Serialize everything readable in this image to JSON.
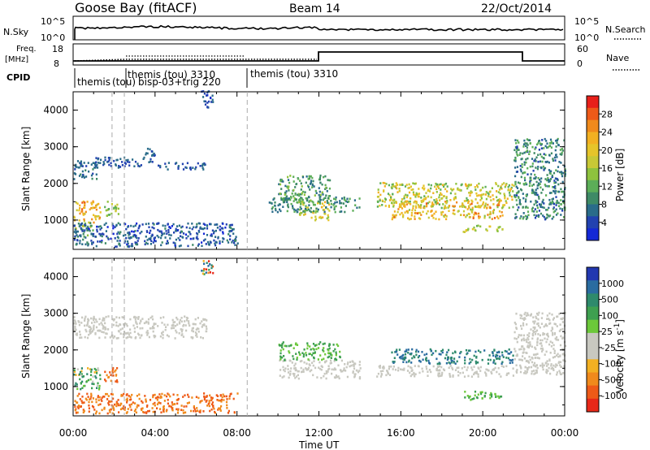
{
  "header": {
    "station": "Goose Bay (fitACF)",
    "beam": "Beam 14",
    "date": "22/Oct/2014"
  },
  "top_panels": {
    "nsky_label": "N.Sky",
    "nsky_ticks": [
      "10^5",
      "10^0"
    ],
    "nsearch_label": "N.Search",
    "nsearch_ticks": [
      "10^5",
      "10^0"
    ],
    "freq_label": "Freq.",
    "freq_unit": "[MHz]",
    "freq_ticks": [
      "18",
      "8"
    ],
    "nave_label": "Nave",
    "nave_ticks": [
      "60",
      "0"
    ],
    "cpid_label": "CPID",
    "cpid_entries": [
      {
        "label": "themis",
        "t_start": 0.0
      },
      {
        "label": "(tou)",
        "t_start": 1.3
      },
      {
        "label": "themis (tou) 3310",
        "t_start": 2.1
      },
      {
        "label": "bisp-03+trig 220",
        "t_start": 2.5
      },
      {
        "label": "themis (tou) 3310",
        "t_start": 8.5
      }
    ]
  },
  "power_colorbar": {
    "title": "Power [dB]",
    "ticks": [
      "28",
      "24",
      "20",
      "16",
      "12",
      "8",
      "4"
    ],
    "colors": [
      "#e8201a",
      "#ee5a18",
      "#f08a1c",
      "#f2b022",
      "#e6c42a",
      "#c8c836",
      "#8ec23e",
      "#5cae58",
      "#3e8a66",
      "#2a6c8a",
      "#2242b0",
      "#1428d6"
    ]
  },
  "velocity_colorbar": {
    "title": "Velocity [m s",
    "title_sup": "-1",
    "title_end": "]",
    "ticks": [
      "1000",
      "500",
      "100",
      "25",
      "-25",
      "-100",
      "-500",
      "-1000"
    ],
    "colors": [
      "#2238b0",
      "#2a6ca0",
      "#2e8a6c",
      "#3ea050",
      "#6cc83a",
      "#c8c8c0",
      "#c8c8c0",
      "#f2b022",
      "#f08a1c",
      "#ee5a18",
      "#e82818"
    ]
  },
  "chart_data": {
    "type": "heatmap",
    "xlabel": "Time UT",
    "x_ticks": [
      "00:00",
      "04:00",
      "08:00",
      "12:00",
      "16:00",
      "20:00",
      "00:00"
    ],
    "ylabel": "Slant Range [km]",
    "y_ticks": [
      1000,
      2000,
      3000,
      4000
    ],
    "xlim": [
      0,
      24
    ],
    "ylim": [
      200,
      4500
    ],
    "panels": [
      {
        "name": "Power [dB]",
        "scatter_regions": [
          {
            "t": [
              0.0,
              1.3
            ],
            "r": [
              900,
              1500
            ],
            "level": [
              18,
              28
            ]
          },
          {
            "t": [
              0.0,
              1.0
            ],
            "r": [
              500,
              1000
            ],
            "level": [
              10,
              18
            ]
          },
          {
            "t": [
              1.5,
              2.2
            ],
            "r": [
              1100,
              1500
            ],
            "level": [
              12,
              20
            ]
          },
          {
            "t": [
              0.0,
              1.2
            ],
            "r": [
              2100,
              2600
            ],
            "level": [
              6,
              10
            ]
          },
          {
            "t": [
              1.0,
              3.5
            ],
            "r": [
              2400,
              2700
            ],
            "level": [
              5,
              9
            ]
          },
          {
            "t": [
              3.5,
              4.0
            ],
            "r": [
              2550,
              2950
            ],
            "level": [
              5,
              9
            ]
          },
          {
            "t": [
              4.0,
              6.5
            ],
            "r": [
              2350,
              2550
            ],
            "level": [
              5,
              9
            ]
          },
          {
            "t": [
              0.0,
              8.0
            ],
            "r": [
              250,
              900
            ],
            "level": [
              4,
              10
            ]
          },
          {
            "t": [
              6.2,
              6.8
            ],
            "r": [
              4050,
              4500
            ],
            "level": [
              4,
              9
            ]
          },
          {
            "t": [
              10.0,
              12.5
            ],
            "r": [
              1500,
              2200
            ],
            "level": [
              8,
              16
            ]
          },
          {
            "t": [
              11.0,
              12.5
            ],
            "r": [
              950,
              1500
            ],
            "level": [
              14,
              24
            ]
          },
          {
            "t": [
              9.5,
              14.0
            ],
            "r": [
              1200,
              1600
            ],
            "level": [
              8,
              14
            ]
          },
          {
            "t": [
              14.8,
              21.5
            ],
            "r": [
              1300,
              2000
            ],
            "level": [
              12,
              24
            ]
          },
          {
            "t": [
              15.5,
              21.0
            ],
            "r": [
              1000,
              1500
            ],
            "level": [
              16,
              28
            ]
          },
          {
            "t": [
              19.0,
              21.0
            ],
            "r": [
              650,
              850
            ],
            "level": [
              14,
              22
            ]
          },
          {
            "t": [
              21.5,
              24.0
            ],
            "r": [
              1000,
              3200
            ],
            "level": [
              6,
              14
            ]
          }
        ]
      },
      {
        "name": "Velocity [m s-1]",
        "scatter_regions": [
          {
            "t": [
              0.0,
              1.3
            ],
            "r": [
              900,
              1500
            ],
            "level": [
              -100,
              500
            ]
          },
          {
            "t": [
              1.5,
              2.2
            ],
            "r": [
              1100,
              1500
            ],
            "level": [
              -500,
              -100
            ]
          },
          {
            "t": [
              0.0,
              6.5
            ],
            "r": [
              2300,
              2900
            ],
            "level": [
              -25,
              25
            ]
          },
          {
            "t": [
              0.0,
              8.0
            ],
            "r": [
              250,
              800
            ],
            "level": [
              -500,
              -100
            ]
          },
          {
            "t": [
              6.2,
              6.8
            ],
            "r": [
              4050,
              4500
            ],
            "level": [
              -1000,
              1000
            ]
          },
          {
            "t": [
              10.0,
              14.0
            ],
            "r": [
              1200,
              1700
            ],
            "level": [
              -25,
              25
            ]
          },
          {
            "t": [
              10.0,
              13.0
            ],
            "r": [
              1700,
              2200
            ],
            "level": [
              50,
              150
            ]
          },
          {
            "t": [
              14.8,
              21.5
            ],
            "r": [
              1250,
              1550
            ],
            "level": [
              -25,
              25
            ]
          },
          {
            "t": [
              15.5,
              21.5
            ],
            "r": [
              1600,
              2000
            ],
            "level": [
              300,
              700
            ]
          },
          {
            "t": [
              19.0,
              21.0
            ],
            "r": [
              600,
              850
            ],
            "level": [
              50,
              150
            ]
          },
          {
            "t": [
              21.5,
              24.0
            ],
            "r": [
              1300,
              3000
            ],
            "level": [
              -25,
              25
            ]
          }
        ]
      }
    ]
  }
}
